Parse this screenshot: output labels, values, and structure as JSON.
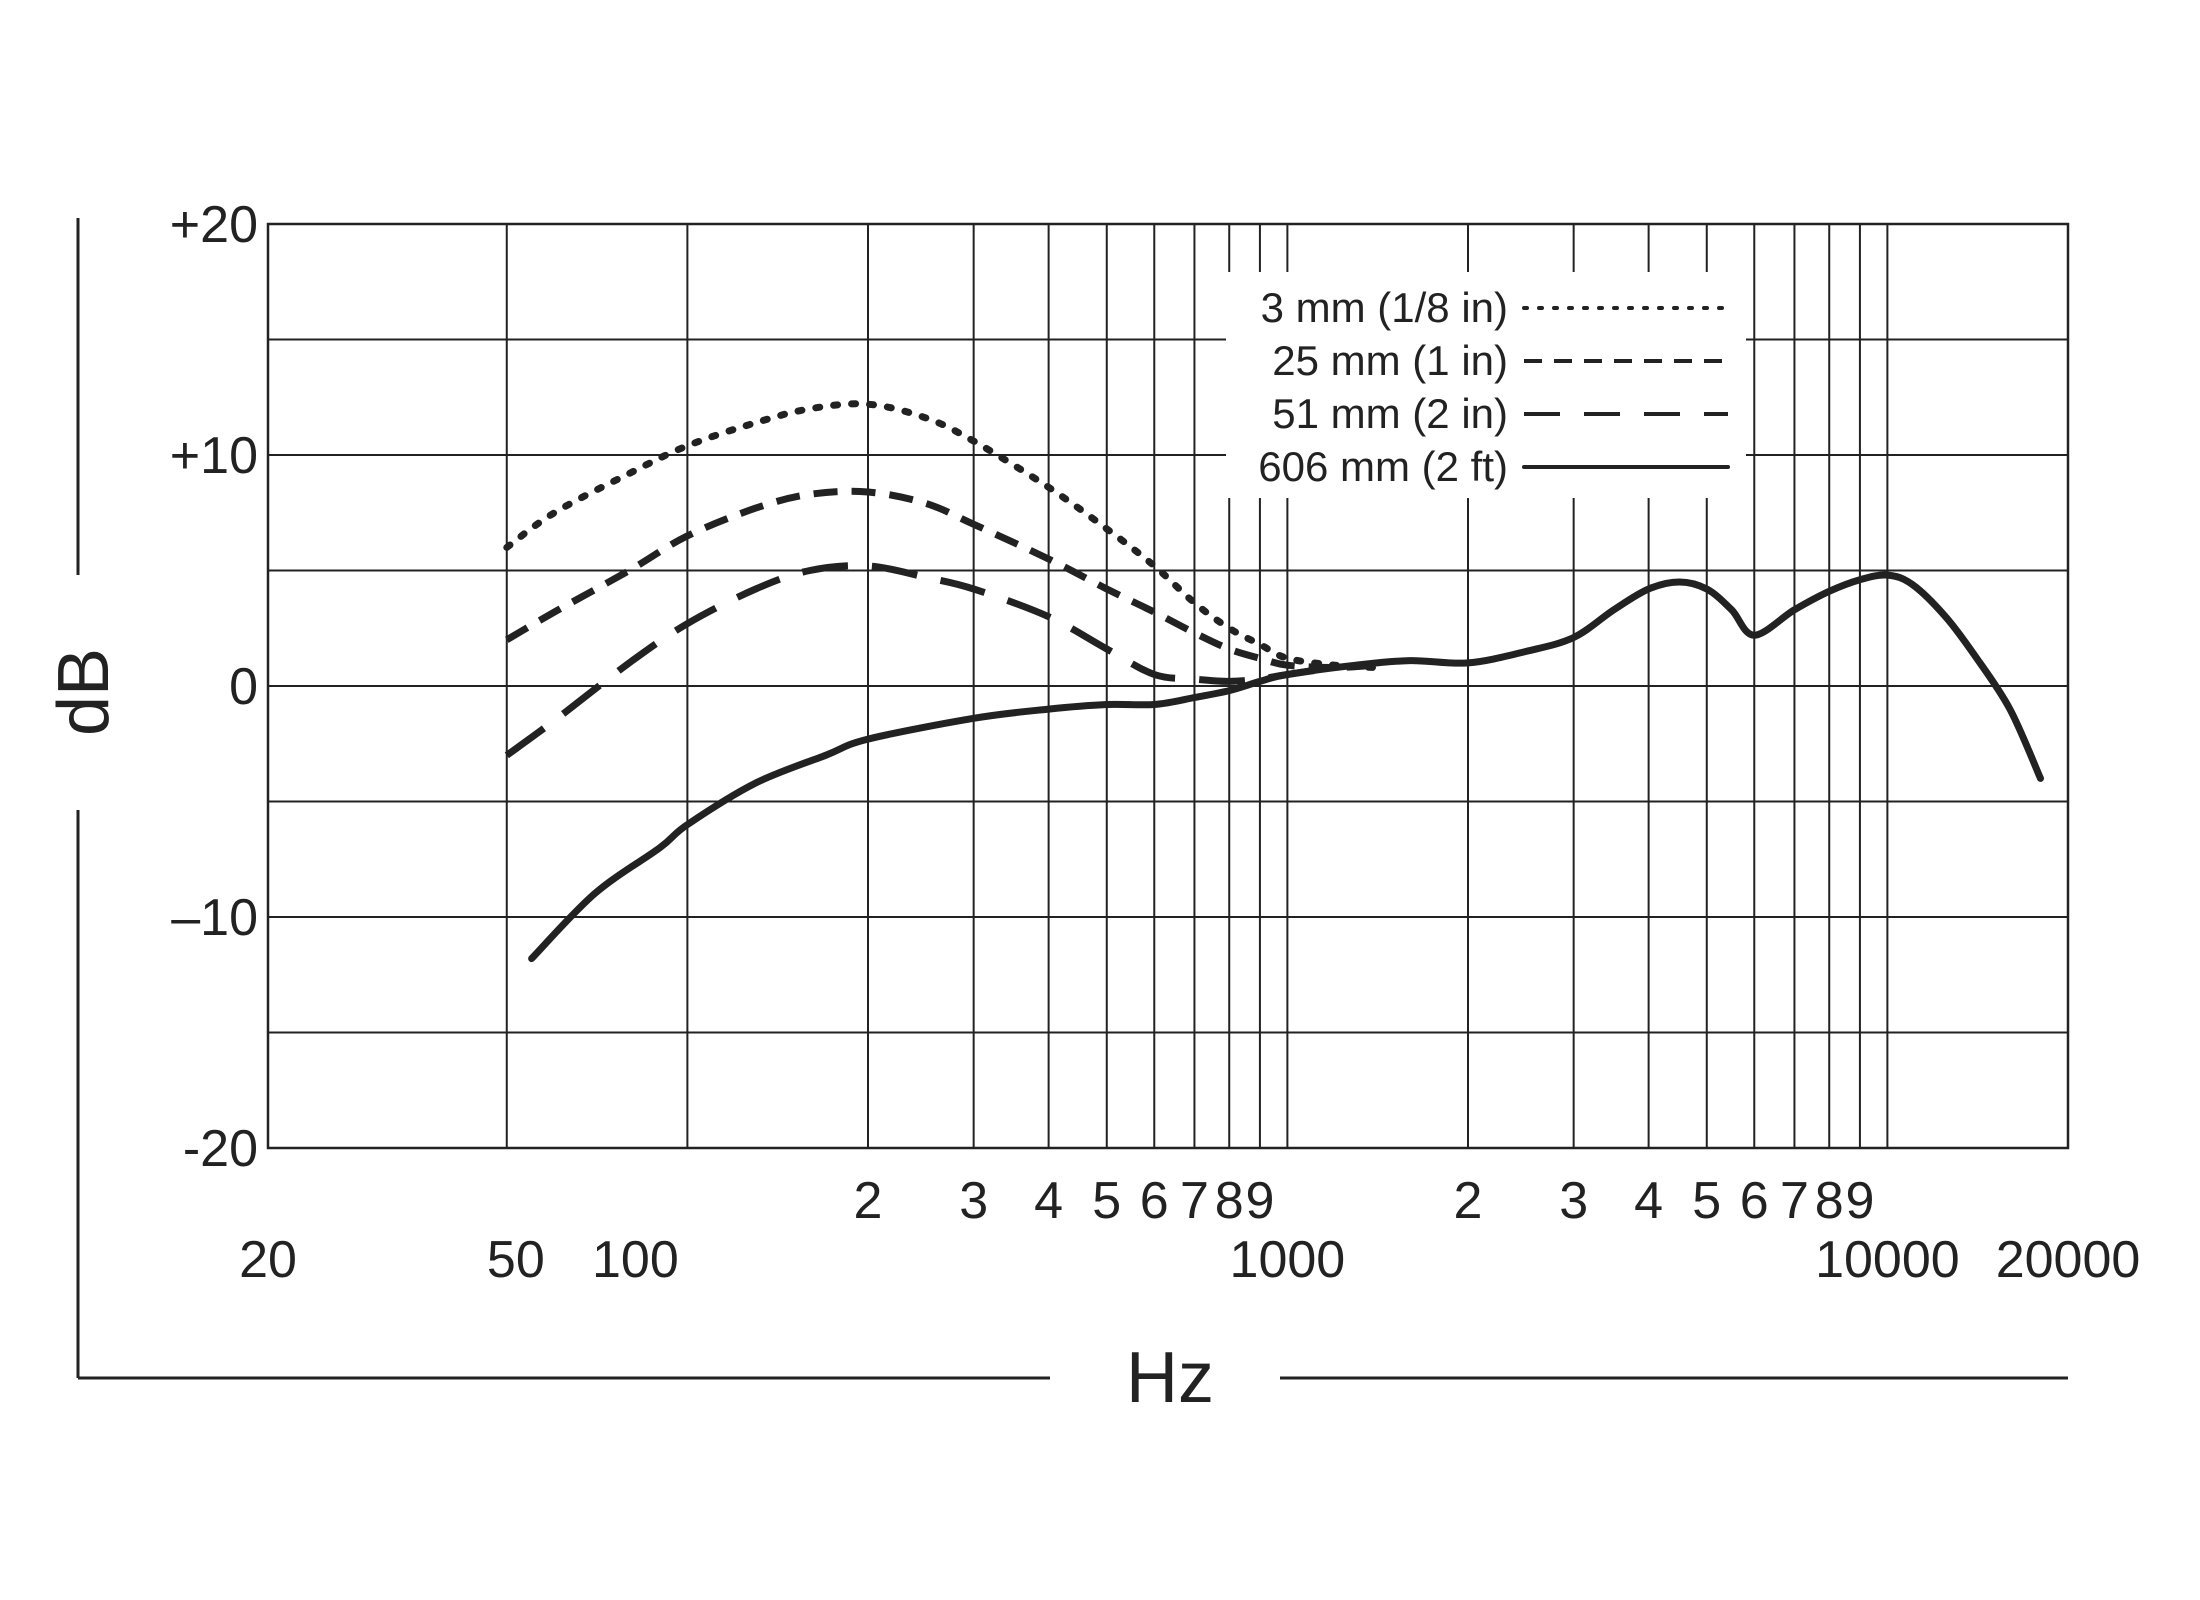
{
  "chart_data": {
    "type": "line",
    "xlabel": "Hz",
    "ylabel": "dB",
    "x_scale": "log",
    "xlim": [
      20,
      20000
    ],
    "ylim": [
      -20,
      20
    ],
    "grid": true,
    "legend_position": "top-right",
    "y_ticks": [
      {
        "value": 20,
        "label": "+20"
      },
      {
        "value": 10,
        "label": "+10"
      },
      {
        "value": 0,
        "label": "0"
      },
      {
        "value": -10,
        "label": "–10"
      },
      {
        "value": -20,
        "label": "-20"
      }
    ],
    "x_major_ticks": [
      {
        "value": 20,
        "label": "20"
      },
      {
        "value": 50,
        "label": "50"
      },
      {
        "value": 100,
        "label": "100"
      },
      {
        "value": 1000,
        "label": "1000"
      },
      {
        "value": 10000,
        "label": "10000"
      },
      {
        "value": 20000,
        "label": "20000"
      }
    ],
    "x_minor_ticks": [
      {
        "value": 200,
        "label": "2"
      },
      {
        "value": 300,
        "label": "3"
      },
      {
        "value": 400,
        "label": "4"
      },
      {
        "value": 500,
        "label": "5"
      },
      {
        "value": 600,
        "label": "6"
      },
      {
        "value": 700,
        "label": "7"
      },
      {
        "value": 800,
        "label": "8"
      },
      {
        "value": 900,
        "label": "9"
      },
      {
        "value": 2000,
        "label": "2"
      },
      {
        "value": 3000,
        "label": "3"
      },
      {
        "value": 4000,
        "label": "4"
      },
      {
        "value": 5000,
        "label": "5"
      },
      {
        "value": 6000,
        "label": "6"
      },
      {
        "value": 7000,
        "label": "7"
      },
      {
        "value": 8000,
        "label": "8"
      },
      {
        "value": 9000,
        "label": "9"
      }
    ],
    "series": [
      {
        "name": "3 mm (1/8 in)",
        "style": "dotted",
        "color": "#222222",
        "points": [
          [
            50,
            6
          ],
          [
            60,
            7.5
          ],
          [
            80,
            9.2
          ],
          [
            100,
            10.4
          ],
          [
            130,
            11.4
          ],
          [
            160,
            12
          ],
          [
            200,
            12.2
          ],
          [
            250,
            11.6
          ],
          [
            300,
            10.6
          ],
          [
            400,
            8.6
          ],
          [
            500,
            6.8
          ],
          [
            600,
            5.2
          ],
          [
            700,
            3.6
          ],
          [
            800,
            2.5
          ],
          [
            900,
            1.8
          ],
          [
            1000,
            1.2
          ],
          [
            1200,
            0.9
          ],
          [
            1400,
            0.8
          ]
        ]
      },
      {
        "name": "25 mm (1 in)",
        "style": "dashed",
        "color": "#222222",
        "points": [
          [
            50,
            2
          ],
          [
            60,
            3.2
          ],
          [
            80,
            5
          ],
          [
            100,
            6.5
          ],
          [
            130,
            7.7
          ],
          [
            160,
            8.3
          ],
          [
            200,
            8.4
          ],
          [
            250,
            7.9
          ],
          [
            300,
            7
          ],
          [
            400,
            5.5
          ],
          [
            500,
            4.2
          ],
          [
            600,
            3.2
          ],
          [
            700,
            2.3
          ],
          [
            800,
            1.6
          ],
          [
            900,
            1.2
          ],
          [
            1000,
            0.9
          ],
          [
            1200,
            0.8
          ],
          [
            1400,
            0.9
          ]
        ]
      },
      {
        "name": "51 mm (2 in)",
        "style": "long-dashed",
        "color": "#222222",
        "points": [
          [
            50,
            -3
          ],
          [
            60,
            -1.5
          ],
          [
            80,
            1
          ],
          [
            100,
            2.7
          ],
          [
            130,
            4.2
          ],
          [
            160,
            5
          ],
          [
            200,
            5.2
          ],
          [
            250,
            4.7
          ],
          [
            300,
            4.2
          ],
          [
            400,
            3
          ],
          [
            500,
            1.6
          ],
          [
            600,
            0.5
          ],
          [
            700,
            0.3
          ],
          [
            800,
            0.2
          ],
          [
            900,
            0.3
          ],
          [
            1000,
            0.5
          ],
          [
            1200,
            0.8
          ]
        ]
      },
      {
        "name": "606 mm (2 ft)",
        "style": "solid",
        "color": "#222222",
        "points": [
          [
            55,
            -11.8
          ],
          [
            70,
            -9
          ],
          [
            90,
            -7
          ],
          [
            100,
            -6
          ],
          [
            130,
            -4.2
          ],
          [
            170,
            -3
          ],
          [
            200,
            -2.3
          ],
          [
            300,
            -1.4
          ],
          [
            400,
            -1
          ],
          [
            500,
            -0.8
          ],
          [
            600,
            -0.8
          ],
          [
            700,
            -0.5
          ],
          [
            800,
            -0.2
          ],
          [
            900,
            0.2
          ],
          [
            1000,
            0.5
          ],
          [
            1300,
            0.9
          ],
          [
            1600,
            1.1
          ],
          [
            2000,
            1
          ],
          [
            2500,
            1.5
          ],
          [
            3000,
            2.1
          ],
          [
            3500,
            3.3
          ],
          [
            4000,
            4.2
          ],
          [
            4500,
            4.5
          ],
          [
            5000,
            4.2
          ],
          [
            5500,
            3.3
          ],
          [
            6000,
            2.2
          ],
          [
            7000,
            3.3
          ],
          [
            8000,
            4.1
          ],
          [
            9000,
            4.6
          ],
          [
            10000,
            4.8
          ],
          [
            11000,
            4.4
          ],
          [
            12500,
            3
          ],
          [
            14000,
            1.3
          ],
          [
            16000,
            -1
          ],
          [
            18000,
            -4
          ]
        ]
      }
    ]
  }
}
